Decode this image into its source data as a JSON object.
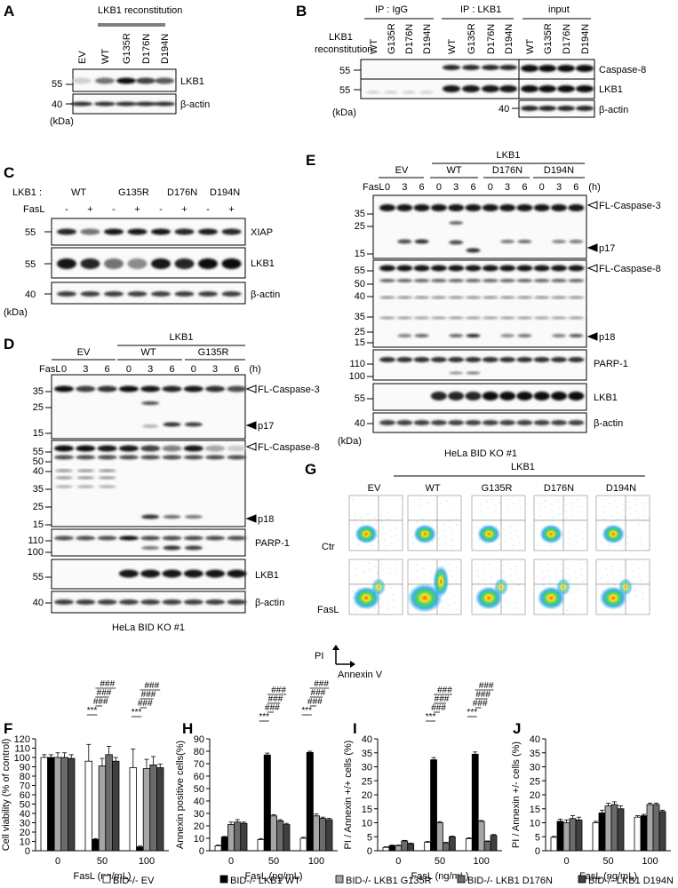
{
  "panel_labels": {
    "A": "A",
    "B": "B",
    "C": "C",
    "D": "D",
    "E": "E",
    "F": "F",
    "G": "G",
    "H": "H",
    "I": "I",
    "J": "J"
  },
  "kda": "(kDa)",
  "panelA": {
    "title": "LKB1 reconstitution",
    "lanes": [
      "EV",
      "WT",
      "G135R",
      "D176N",
      "D194N"
    ],
    "blots": [
      "LKB1",
      "β-actin"
    ],
    "mw": [
      "55",
      "40"
    ]
  },
  "panelB": {
    "groups": [
      "IP : IgG",
      "IP : LKB1",
      "input"
    ],
    "row_label_1": "LKB1",
    "row_label_2": "reconstitution",
    "lanes": [
      "WT",
      "G135R",
      "D176N",
      "D194N"
    ],
    "blots": [
      "Caspase-8",
      "LKB1",
      "β-actin"
    ],
    "mw": [
      "55",
      "55",
      "40"
    ]
  },
  "panelC": {
    "row1_label": "LKB1 :",
    "row2_label": "FasL",
    "groups": [
      "WT",
      "G135R",
      "D176N",
      "D194N"
    ],
    "signs": [
      "-",
      "+"
    ],
    "blots": [
      "XIAP",
      "LKB1",
      "β-actin"
    ],
    "mw": [
      "55",
      "55",
      "40"
    ]
  },
  "panelD": {
    "top_group": "LKB1",
    "groups": [
      "EV",
      "WT",
      "G135R"
    ],
    "fasl_label": "FasL",
    "times": [
      "0",
      "3",
      "6"
    ],
    "unit": "(h)",
    "mw": [
      "35",
      "25",
      "15",
      "55",
      "50",
      "40",
      "35",
      "25",
      "15",
      "110",
      "100",
      "55",
      "40"
    ],
    "blots": [
      "FL-Caspase-3",
      "p17",
      "FL-Caspase-8",
      "p18",
      "PARP-1",
      "LKB1",
      "β-actin"
    ],
    "cell_line": "HeLa BID KO #1"
  },
  "panelE": {
    "top_group": "LKB1",
    "groups": [
      "EV",
      "WT",
      "D176N",
      "D194N"
    ],
    "fasl_label": "FasL",
    "times": [
      "0",
      "3",
      "6"
    ],
    "unit": "(h)",
    "mw": [
      "35",
      "25",
      "15",
      "55",
      "50",
      "40",
      "35",
      "25",
      "15",
      "110",
      "100",
      "55",
      "40"
    ],
    "blots": [
      "FL-Caspase-3",
      "p17",
      "FL-Caspase-8",
      "p18",
      "PARP-1",
      "LKB1",
      "β-actin"
    ],
    "cell_line": "HeLa BID KO #1"
  },
  "panelG": {
    "top_group": "LKB1",
    "columns": [
      "EV",
      "WT",
      "G135R",
      "D176N",
      "D194N"
    ],
    "rows": [
      "Ctr",
      "FasL"
    ],
    "y_axis": "PI",
    "x_axis": "Annexin V"
  },
  "legend": [
    "BID-/- EV",
    "BID-/- LKB1 WT",
    "BID-/- LKB1 G135R",
    "BID-/- LKB1 D176N",
    "BID-/- LKB1 D194N"
  ],
  "colors": {
    "EV": "#ffffff",
    "WT": "#000000",
    "G135R": "#a6a6a6",
    "D176N": "#6b6b6b",
    "D194N": "#3f3f3f"
  },
  "sig": {
    "stars": "***",
    "hashes": "###"
  },
  "chart_data": [
    {
      "type": "bar",
      "panel": "F",
      "categories": [
        "0",
        "50",
        "100"
      ],
      "xlabel": "FasL (ng/mL)",
      "ylabel": "Cell viability (% of control)",
      "ylim": [
        0,
        120
      ],
      "yticks": [
        0,
        10,
        20,
        30,
        40,
        50,
        60,
        70,
        80,
        90,
        100,
        110,
        120
      ],
      "series": [
        {
          "name": "BID-/- EV",
          "values": [
            100,
            96,
            89
          ],
          "errors": [
            3,
            18,
            20
          ]
        },
        {
          "name": "BID-/- LKB1 WT",
          "values": [
            100,
            12,
            4
          ],
          "errors": [
            3,
            1,
            1
          ]
        },
        {
          "name": "BID-/- LKB1 G135R",
          "values": [
            100,
            91,
            88
          ],
          "errors": [
            5,
            8,
            10
          ]
        },
        {
          "name": "BID-/- LKB1 D176N",
          "values": [
            100,
            103,
            92
          ],
          "errors": [
            5,
            9,
            9
          ]
        },
        {
          "name": "BID-/- LKB1 D194N",
          "values": [
            99,
            96,
            89
          ],
          "errors": [
            4,
            4,
            4
          ]
        }
      ]
    },
    {
      "type": "bar",
      "panel": "H",
      "categories": [
        "0",
        "50",
        "100"
      ],
      "xlabel": "FasL (ng/mL)",
      "ylabel": "Annexin positive cells(%)",
      "ylim": [
        0,
        90
      ],
      "yticks": [
        0,
        10,
        20,
        30,
        40,
        50,
        60,
        70,
        80,
        90
      ],
      "series": [
        {
          "name": "BID-/- EV",
          "values": [
            4,
            9,
            10
          ],
          "errors": [
            0.5,
            0.8,
            0.8
          ]
        },
        {
          "name": "BID-/- LKB1 WT",
          "values": [
            11,
            77,
            79
          ],
          "errors": [
            0.5,
            1.5,
            1.0
          ]
        },
        {
          "name": "BID-/- LKB1 G135R",
          "values": [
            21,
            28,
            28
          ],
          "errors": [
            2,
            1,
            1.5
          ]
        },
        {
          "name": "BID-/- LKB1 D176N",
          "values": [
            23,
            24,
            26
          ],
          "errors": [
            2,
            1,
            1
          ]
        },
        {
          "name": "BID-/- LKB1 D194N",
          "values": [
            22,
            21,
            25
          ],
          "errors": [
            1,
            1,
            1
          ]
        }
      ]
    },
    {
      "type": "bar",
      "panel": "I",
      "categories": [
        "0",
        "50",
        "100"
      ],
      "xlabel": "FasL (ng/mL)",
      "ylabel": "PI / Annexin +/+ cells (%)",
      "ylim": [
        0,
        40
      ],
      "yticks": [
        0,
        5,
        10,
        15,
        20,
        25,
        30,
        35,
        40
      ],
      "series": [
        {
          "name": "BID-/- EV",
          "values": [
            1.2,
            3.0,
            4.3
          ],
          "errors": [
            0.2,
            0.3,
            0.3
          ]
        },
        {
          "name": "BID-/- LKB1 WT",
          "values": [
            1.8,
            32.5,
            34.5
          ],
          "errors": [
            0.2,
            0.8,
            0.8
          ]
        },
        {
          "name": "BID-/- LKB1 G135R",
          "values": [
            1.8,
            10.0,
            10.5
          ],
          "errors": [
            0.2,
            0.4,
            0.3
          ]
        },
        {
          "name": "BID-/- LKB1 D176N",
          "values": [
            3.5,
            2.8,
            3.3
          ],
          "errors": [
            0.2,
            0.2,
            0.2
          ]
        },
        {
          "name": "BID-/- LKB1 D194N",
          "values": [
            2.5,
            5.0,
            5.5
          ],
          "errors": [
            0.2,
            0.2,
            0.3
          ]
        }
      ]
    },
    {
      "type": "bar",
      "panel": "J",
      "categories": [
        "0",
        "50",
        "100"
      ],
      "xlabel": "FasL (ng/mL)",
      "ylabel": "PI / Annexin +/- cells (%)",
      "ylim": [
        0,
        40
      ],
      "yticks": [
        0,
        5,
        10,
        15,
        20,
        25,
        30,
        35,
        40
      ],
      "series": [
        {
          "name": "BID-/- EV",
          "values": [
            4.8,
            10.0,
            12.0
          ],
          "errors": [
            0.3,
            0.5,
            0.5
          ]
        },
        {
          "name": "BID-/- LKB1 WT",
          "values": [
            10.5,
            13.5,
            12.5
          ],
          "errors": [
            0.8,
            1.0,
            0.5
          ]
        },
        {
          "name": "BID-/- LKB1 G135R",
          "values": [
            10.0,
            16.0,
            16.5
          ],
          "errors": [
            1.0,
            1.0,
            0.5
          ]
        },
        {
          "name": "BID-/- LKB1 D176N",
          "values": [
            11.5,
            16.5,
            16.5
          ],
          "errors": [
            1.0,
            1.0,
            0.5
          ]
        },
        {
          "name": "BID-/- LKB1 D194N",
          "values": [
            11.0,
            15.0,
            14.0
          ],
          "errors": [
            1.0,
            1.0,
            0.5
          ]
        }
      ]
    }
  ]
}
